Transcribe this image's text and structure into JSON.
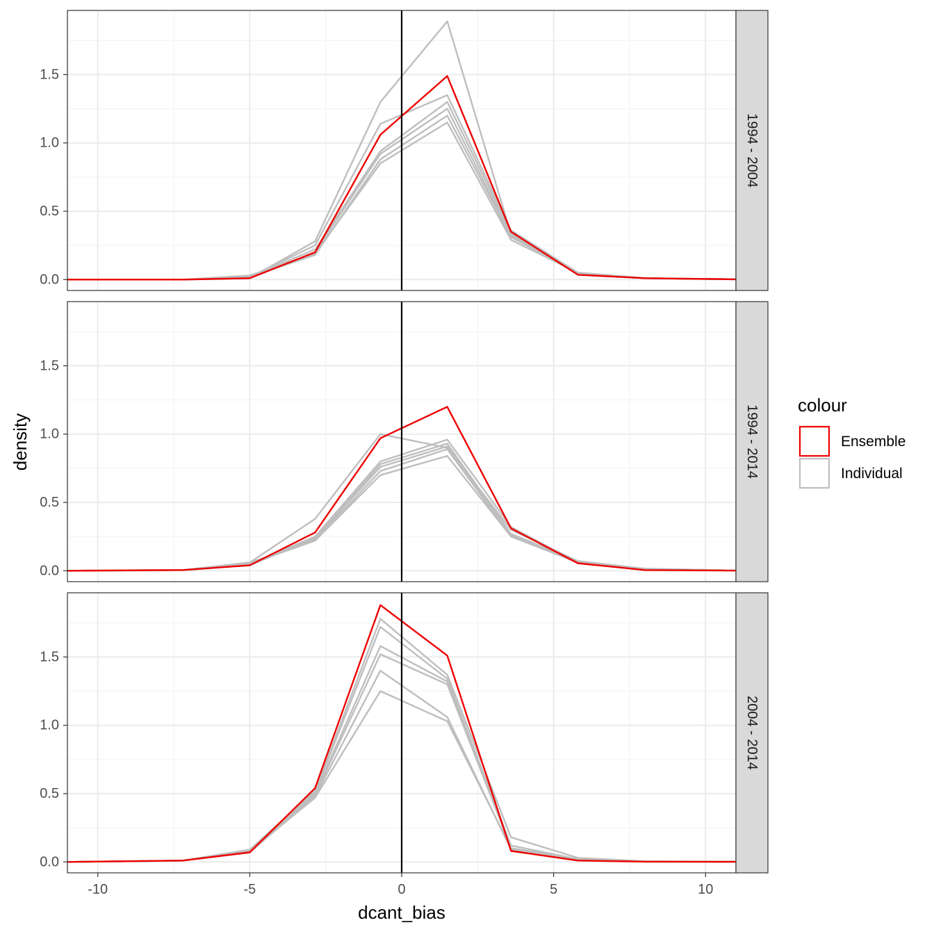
{
  "chart_data": {
    "type": "line",
    "xlabel": "dcant_bias",
    "ylabel": "density",
    "xlim": [
      -11,
      11
    ],
    "ylim": [
      -0.08,
      1.97
    ],
    "x_ticks": [
      -10,
      -5,
      0,
      5,
      10
    ],
    "x_tick_labels": [
      "-10",
      "-5",
      "0",
      "5",
      "10"
    ],
    "y_ticks": [
      0.0,
      0.5,
      1.0,
      1.5
    ],
    "y_tick_labels": [
      "0.0",
      "0.5",
      "1.0",
      "1.5"
    ],
    "vline_x": 0,
    "grid": true,
    "legend": {
      "title": "colour",
      "placement": "right",
      "entries": [
        {
          "label": "Ensemble",
          "color": "#ee0000"
        },
        {
          "label": "Individual",
          "color": "#bebebe"
        }
      ]
    },
    "x": [
      -11,
      -7.2,
      -5,
      -2.85,
      -0.7,
      1.5,
      3.6,
      5.8,
      8,
      11
    ],
    "panels": [
      {
        "strip": "1994 - 2004",
        "ensemble": [
          0,
          0,
          0.01,
          0.2,
          1.06,
          1.49,
          0.35,
          0.035,
          0.01,
          0.002
        ],
        "individual": [
          [
            0,
            0,
            0.01,
            0.28,
            1.3,
            1.89,
            0.33,
            0.04,
            0.01,
            0.002
          ],
          [
            0,
            0,
            0.02,
            0.25,
            1.14,
            1.35,
            0.36,
            0.05,
            0.01,
            0.002
          ],
          [
            0,
            0,
            0.02,
            0.22,
            0.94,
            1.3,
            0.34,
            0.05,
            0.01,
            0.002
          ],
          [
            0,
            0,
            0.01,
            0.2,
            0.92,
            1.25,
            0.32,
            0.04,
            0.01,
            0.002
          ],
          [
            0,
            0,
            0.02,
            0.18,
            0.88,
            1.2,
            0.31,
            0.05,
            0.01,
            0.002
          ],
          [
            0,
            0,
            0.03,
            0.19,
            0.85,
            1.15,
            0.29,
            0.05,
            0.01,
            0.002
          ]
        ]
      },
      {
        "strip": "1994 - 2014",
        "ensemble": [
          0,
          0.005,
          0.04,
          0.28,
          0.97,
          1.2,
          0.31,
          0.055,
          0.005,
          0.001
        ],
        "individual": [
          [
            0,
            0.005,
            0.06,
            0.38,
            1.0,
            0.9,
            0.3,
            0.07,
            0.015,
            0.002
          ],
          [
            0,
            0.005,
            0.05,
            0.25,
            0.8,
            0.96,
            0.32,
            0.06,
            0.01,
            0.002
          ],
          [
            0,
            0.005,
            0.04,
            0.24,
            0.78,
            0.93,
            0.27,
            0.07,
            0.01,
            0.002
          ],
          [
            0,
            0.005,
            0.05,
            0.23,
            0.76,
            0.91,
            0.26,
            0.06,
            0.01,
            0.002
          ],
          [
            0,
            0.005,
            0.05,
            0.22,
            0.73,
            0.89,
            0.25,
            0.07,
            0.015,
            0.002
          ],
          [
            0,
            0.005,
            0.06,
            0.22,
            0.7,
            0.84,
            0.25,
            0.06,
            0.01,
            0.002
          ]
        ]
      },
      {
        "strip": "2004 - 2014",
        "ensemble": [
          0,
          0.01,
          0.07,
          0.54,
          1.88,
          1.51,
          0.08,
          0.01,
          0.002,
          0.001
        ],
        "individual": [
          [
            0,
            0.01,
            0.09,
            0.52,
            1.78,
            1.37,
            0.18,
            0.03,
            0.005,
            0.001
          ],
          [
            0,
            0.01,
            0.08,
            0.51,
            1.72,
            1.34,
            0.12,
            0.02,
            0.004,
            0.001
          ],
          [
            0,
            0.01,
            0.07,
            0.5,
            1.58,
            1.32,
            0.1,
            0.02,
            0.003,
            0.001
          ],
          [
            0,
            0.01,
            0.08,
            0.49,
            1.52,
            1.3,
            0.1,
            0.02,
            0.003,
            0.001
          ],
          [
            0,
            0.01,
            0.07,
            0.48,
            1.4,
            1.06,
            0.09,
            0.02,
            0.003,
            0.001
          ],
          [
            0,
            0.01,
            0.08,
            0.47,
            1.25,
            1.03,
            0.1,
            0.02,
            0.003,
            0.001
          ]
        ]
      }
    ]
  }
}
